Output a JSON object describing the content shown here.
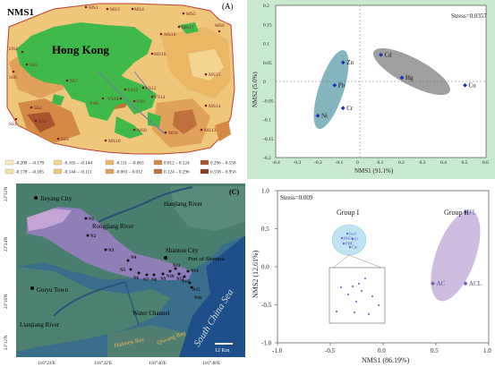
{
  "panel_a": {
    "title": "NMS1",
    "tag": "(A)",
    "region_label": "Hong Kong",
    "sites": [
      "MS1",
      "MS2",
      "MS3",
      "MS4",
      "MS5",
      "MS6",
      "MS7",
      "MS8",
      "MS9",
      "MS10",
      "MS11",
      "MS12",
      "MS13",
      "MS14",
      "MS15",
      "MS16",
      "MS17",
      "MS18",
      "SS1",
      "SS2",
      "SS3",
      "SS4",
      "SS5",
      "SS6",
      "SS7",
      "VS1",
      "VS2",
      "VS3",
      "VS4",
      "VS5",
      "VS6",
      "VS7",
      "VS8",
      "VS9",
      "VS10",
      "DS1",
      "DS2",
      "DS3",
      "DS4",
      "DS5"
    ],
    "legend": [
      {
        "range": "-0.200 – -0.178",
        "color": "#f7ecb6"
      },
      {
        "range": "-0.165 – -0.144",
        "color": "#f2d58e"
      },
      {
        "range": "-0.111 – -0.063",
        "color": "#eab764"
      },
      {
        "range": "0.012 – 0.124",
        "color": "#d48a45"
      },
      {
        "range": "0.296 – 0.558",
        "color": "#a9562e"
      },
      {
        "range": "-0.178 – -0.165",
        "color": "#f4e0a0"
      },
      {
        "range": "-0.144 – -0.111",
        "color": "#efc77a"
      },
      {
        "range": "-0.063 – 0.012",
        "color": "#e0a25a"
      },
      {
        "range": "0.124 – 0.296",
        "color": "#c0703a"
      },
      {
        "range": "0.558 – 0.956",
        "color": "#8a3c22"
      }
    ]
  },
  "panel_b": {
    "stress": "Stress=0.0357",
    "xlabel": "NMS1 (91.1%)",
    "ylabel": "NMS2 (5.0%)",
    "points": [
      {
        "label": "Cd",
        "x": 0.1,
        "y": 0.07
      },
      {
        "label": "Hg",
        "x": 0.2,
        "y": 0.01
      },
      {
        "label": "Cu",
        "x": 0.5,
        "y": -0.01
      },
      {
        "label": "Zn",
        "x": -0.08,
        "y": 0.05
      },
      {
        "label": "Pb",
        "x": -0.12,
        "y": -0.01
      },
      {
        "label": "Cr",
        "x": -0.08,
        "y": -0.07
      },
      {
        "label": "Ni",
        "x": -0.2,
        "y": -0.09
      }
    ],
    "xticks": [
      "-0.4",
      "-0.3",
      "-0.2",
      "-0.1",
      "0",
      "0.1",
      "0.2",
      "0.3",
      "0.4",
      "0.5",
      "0.6"
    ],
    "yticks": [
      "0.2",
      "0.15",
      "0.1",
      "0.05",
      "0",
      "-0.05",
      "-0.1",
      "-0.15",
      "-0.2"
    ]
  },
  "panel_c": {
    "tag": "(C)",
    "places": [
      "Jieyang City",
      "Hanjiang River",
      "Rongjiang River",
      "Shantou City",
      "Port of Shantou",
      "Guiyu Town",
      "Lianjiang River",
      "Water Channel",
      "Haimen Bay",
      "Qiwang Bay",
      "South China Sea"
    ],
    "stations": [
      "N1",
      "N2",
      "N3",
      "N4",
      "N5",
      "N6",
      "N7",
      "N8",
      "N9",
      "N10",
      "N11",
      "N12",
      "N13",
      "N14",
      "N15",
      "N16"
    ],
    "lat_ticks": [
      "23°32'N",
      "23°24'N",
      "23°16'N",
      "23°12'N"
    ],
    "lon_ticks": [
      "116°24'E",
      "116°32'E",
      "116°40'E",
      "116°48'E"
    ],
    "scale": "12 Km"
  },
  "panel_d": {
    "stress": "Stress=0.009",
    "xlabel": "NMS1 (86.19%)",
    "ylabel": "NMS2 (12.61%)",
    "group1": "Group I",
    "group2": "Group II",
    "points": [
      {
        "label": "FL",
        "x": 0.78,
        "y": 0.72
      },
      {
        "label": "AC",
        "x": 0.47,
        "y": -0.22
      },
      {
        "label": "ACL",
        "x": 0.78,
        "y": -0.22
      }
    ],
    "cluster_labels": [
      "BaA",
      "BbFA",
      "Fl",
      "PHE",
      "Chr"
    ],
    "xticks": [
      "-1.0",
      "-0.5",
      "0.0",
      "0.5",
      "1.0"
    ],
    "yticks": [
      "1.0",
      "0.5",
      "0.0",
      "-0.5",
      "-1.0"
    ]
  }
}
